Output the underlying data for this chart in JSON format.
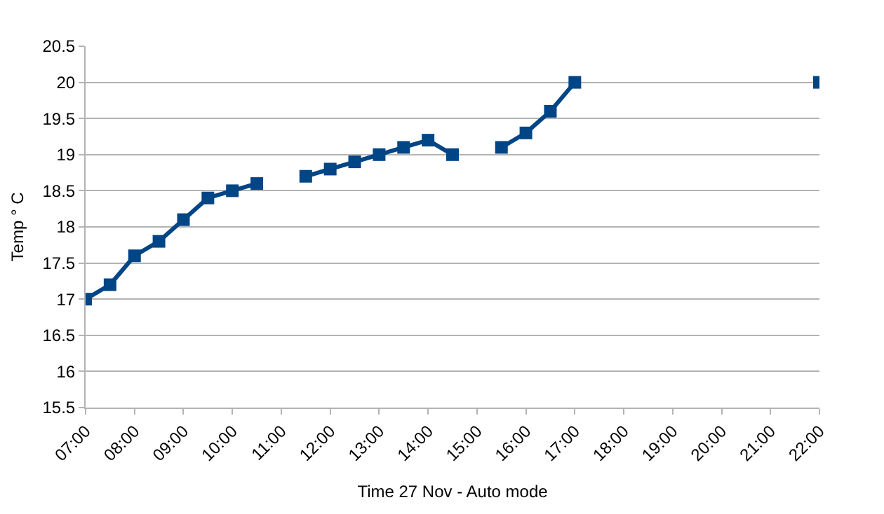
{
  "chart_data": {
    "type": "line",
    "xlabel": "Time 27 Nov - Auto mode",
    "ylabel": "Temp ° C",
    "x": [
      7,
      7.5,
      8,
      8.5,
      9,
      9.5,
      10,
      10.5,
      11,
      11.5,
      12,
      12.5,
      13,
      13.5,
      14,
      14.5,
      15,
      15.5,
      16,
      16.5,
      17,
      17.5,
      18,
      18.5,
      19,
      19.5,
      20,
      20.5,
      21,
      21.5,
      22
    ],
    "series": [
      {
        "color": "#004586",
        "values": [
          17,
          17.2,
          17.6,
          17.8,
          18.1,
          18.4,
          18.5,
          18.6,
          null,
          18.7,
          18.8,
          18.9,
          19.0,
          19.1,
          19.2,
          19.0,
          null,
          19.1,
          19.3,
          19.6,
          20.0,
          null,
          null,
          null,
          null,
          null,
          null,
          null,
          null,
          null,
          20.0
        ]
      }
    ],
    "xlim": [
      7,
      22
    ],
    "xticks": [
      {
        "value": 7,
        "label": "07:00"
      },
      {
        "value": 8,
        "label": "08:00"
      },
      {
        "value": 9,
        "label": "09:00"
      },
      {
        "value": 10,
        "label": "10:00"
      },
      {
        "value": 11,
        "label": "11:00"
      },
      {
        "value": 12,
        "label": "12:00"
      },
      {
        "value": 13,
        "label": "13:00"
      },
      {
        "value": 14,
        "label": "14:00"
      },
      {
        "value": 15,
        "label": "15:00"
      },
      {
        "value": 16,
        "label": "16:00"
      },
      {
        "value": 17,
        "label": "17:00"
      },
      {
        "value": 18,
        "label": "18:00"
      },
      {
        "value": 19,
        "label": "19:00"
      },
      {
        "value": 20,
        "label": "20:00"
      },
      {
        "value": 21,
        "label": "21:00"
      },
      {
        "value": 22,
        "label": "22:00"
      }
    ],
    "ylim": [
      15.5,
      20.5
    ],
    "yticks": [
      15.5,
      16,
      16.5,
      17,
      17.5,
      18,
      18.5,
      19,
      19.5,
      20,
      20.5
    ],
    "grid": "y",
    "marker": "square",
    "line_style": "solid"
  }
}
